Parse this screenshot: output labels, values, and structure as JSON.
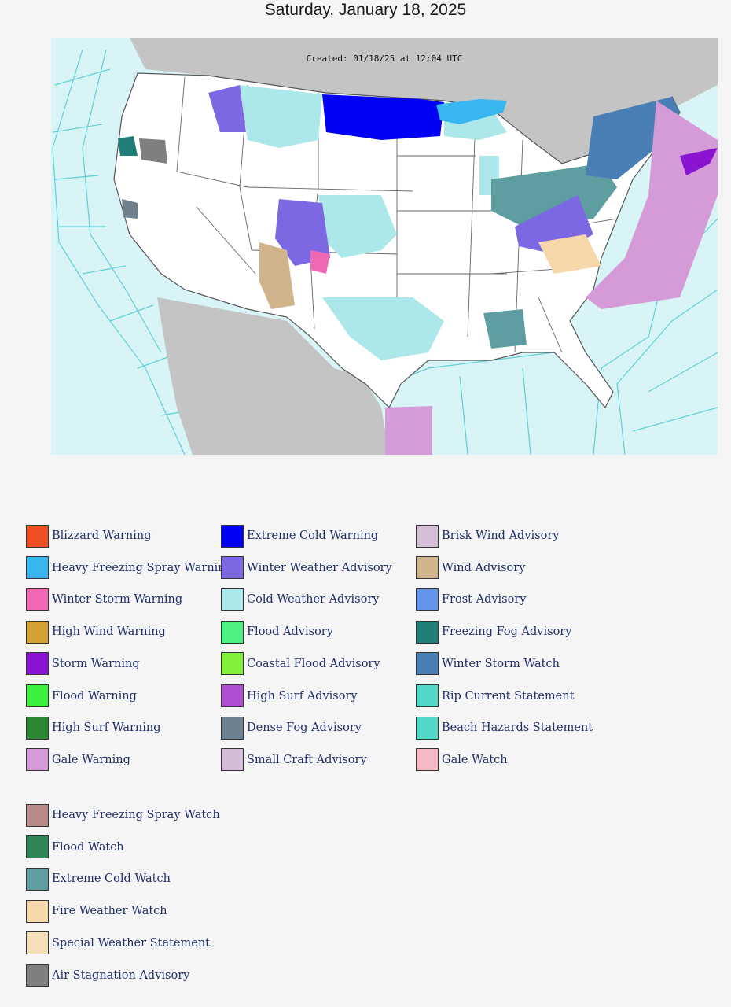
{
  "header": {
    "date": "Saturday, January 18, 2025"
  },
  "map": {
    "created_text": "Created: 01/18/25 at 12:04 UTC",
    "ocean_color": "#d9f4f6",
    "land_color": "#ffffff",
    "foreign_land_color": "#c4c4c4"
  },
  "legend": {
    "columns": [
      [
        {
          "label": "Blizzard Warning",
          "color": "#f04e23"
        },
        {
          "label": "Heavy Freezing Spray Warning",
          "color": "#38b6f0"
        },
        {
          "label": "Winter Storm Warning",
          "color": "#f067b4"
        },
        {
          "label": "High Wind Warning",
          "color": "#d4a132"
        },
        {
          "label": "Storm Warning",
          "color": "#8a14d2"
        },
        {
          "label": "Flood Warning",
          "color": "#3ef03e"
        },
        {
          "label": "High Surf Warning",
          "color": "#2d8632"
        },
        {
          "label": "Gale Warning",
          "color": "#d59ad8"
        }
      ],
      [
        {
          "label": "Extreme Cold Warning",
          "color": "#0000f5"
        },
        {
          "label": "Winter Weather Advisory",
          "color": "#7d68e4"
        },
        {
          "label": "Cold Weather Advisory",
          "color": "#ace7ea"
        },
        {
          "label": "Flood Advisory",
          "color": "#4ef284"
        },
        {
          "label": "Coastal Flood Advisory",
          "color": "#80f03a"
        },
        {
          "label": "High Surf Advisory",
          "color": "#b04ed0"
        },
        {
          "label": "Dense Fog Advisory",
          "color": "#6e7f8e"
        },
        {
          "label": "Small Craft Advisory",
          "color": "#d2bcd6"
        }
      ],
      [
        {
          "label": "Brisk Wind Advisory",
          "color": "#d4bfd6"
        },
        {
          "label": "Wind Advisory",
          "color": "#d2b48c"
        },
        {
          "label": "Frost Advisory",
          "color": "#6495ed"
        },
        {
          "label": "Freezing Fog Advisory",
          "color": "#217d78"
        },
        {
          "label": "Winter Storm Watch",
          "color": "#4a7fb5"
        },
        {
          "label": "Rip Current Statement",
          "color": "#52d8c6"
        },
        {
          "label": "Beach Hazards Statement",
          "color": "#52d8c6"
        },
        {
          "label": "Gale Watch",
          "color": "#f4b8c4"
        }
      ],
      [
        {
          "label": "Heavy Freezing Spray Watch",
          "color": "#b88a8a"
        },
        {
          "label": "Flood Watch",
          "color": "#2e8657"
        },
        {
          "label": "Extreme Cold Watch",
          "color": "#5f9ea0"
        },
        {
          "label": "Fire Weather Watch",
          "color": "#f5d7aa"
        },
        {
          "label": "Special Weather Statement",
          "color": "#f5dfb8"
        },
        {
          "label": "Air Stagnation Advisory",
          "color": "#7f7f7f"
        }
      ]
    ]
  }
}
